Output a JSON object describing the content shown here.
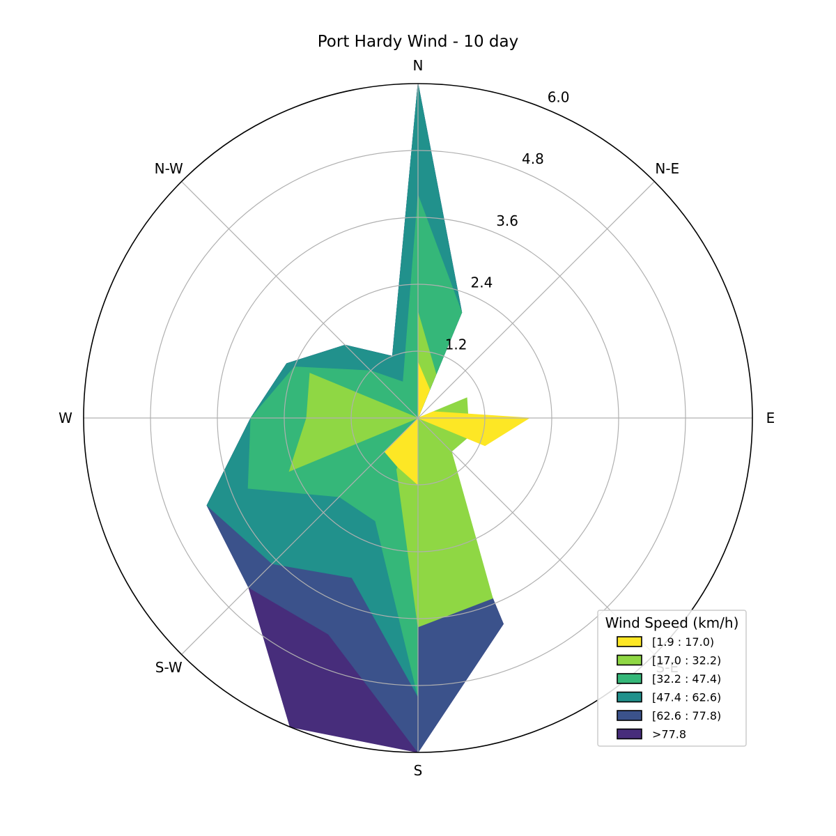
{
  "chart_data": {
    "type": "area",
    "subtype": "windrose",
    "title": "Port Hardy Wind - 10 day",
    "directions": [
      "N",
      "N-E",
      "E",
      "S-E",
      "S",
      "S-W",
      "W",
      "N-W"
    ],
    "radial_ticks": [
      "1.2",
      "2.4",
      "3.6",
      "4.8",
      "6.0"
    ],
    "rmax": 6.0,
    "grid": true,
    "angles_deg": [
      0,
      22.5,
      45,
      67.5,
      90,
      112.5,
      135,
      157.5,
      180,
      202.5,
      225,
      247.5,
      270,
      292.5,
      315,
      337.5
    ],
    "legend": {
      "title": "Wind Speed (km/h)",
      "placement": "lower-right"
    },
    "series": [
      {
        "name": "[1.9 : 17.0)",
        "color": "#fde725",
        "values": [
          1.0,
          0.55,
          0.0,
          0.3,
          2.0,
          1.3,
          0.0,
          0.0,
          1.2,
          0.95,
          0.85,
          0.0,
          1.0,
          0.0,
          0.0,
          0.0
        ]
      },
      {
        "name": "[17.0 : 32.2)",
        "color": "#8fd744",
        "values": [
          1.9,
          0.85,
          0.0,
          0.95,
          0.9,
          0.95,
          0.85,
          3.5,
          3.75,
          1.0,
          0.0,
          2.5,
          2.0,
          2.1,
          0.0,
          0.0
        ]
      },
      {
        "name": "[32.2 : 47.4)",
        "color": "#35b779",
        "values": [
          4.0,
          2.05,
          0.0,
          0.0,
          0.0,
          0.0,
          0.0,
          0.0,
          5.0,
          2.0,
          2.0,
          3.3,
          3.0,
          2.4,
          1.2,
          0.7
        ]
      },
      {
        "name": "[47.4 : 62.6)",
        "color": "#21918c",
        "values": [
          6.0,
          2.05,
          0.0,
          0.0,
          0.0,
          0.0,
          0.0,
          0.0,
          5.0,
          3.1,
          3.7,
          4.1,
          3.0,
          2.55,
          1.85,
          1.2
        ]
      },
      {
        "name": "[62.6 : 77.8)",
        "color": "#3b528b",
        "values": [
          6.0,
          2.05,
          0.0,
          0.0,
          0.0,
          0.0,
          0.0,
          4.0,
          6.0,
          4.2,
          4.3,
          4.1,
          3.0,
          2.55,
          1.85,
          1.2
        ]
      },
      {
        "name": ">77.8",
        "color": "#472d7b",
        "values": [
          6.0,
          2.05,
          0.0,
          0.0,
          0.0,
          0.0,
          0.0,
          4.0,
          6.0,
          6.0,
          4.3,
          4.1,
          3.0,
          2.55,
          1.85,
          1.2
        ]
      }
    ]
  }
}
